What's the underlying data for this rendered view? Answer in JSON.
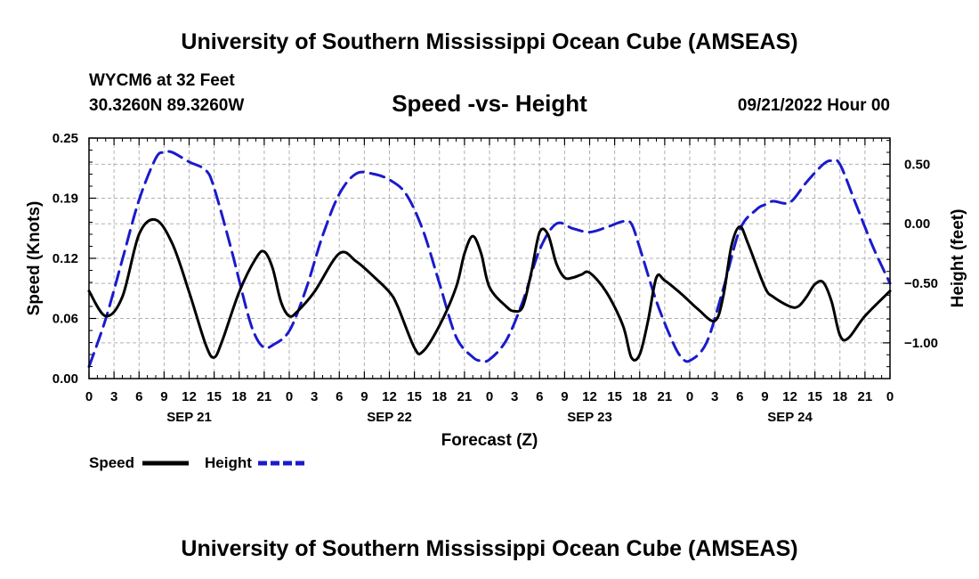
{
  "page": {
    "title": "University of Southern Mississippi Ocean Cube (AMSEAS)",
    "footer_title": "University of Southern Mississippi Ocean Cube (AMSEAS)",
    "station": "WYCM6 at 32 Feet",
    "coords": "30.3260N  89.3260W",
    "date": "09/21/2022 Hour 00"
  },
  "chart_data": {
    "type": "line",
    "title": "Speed -vs- Height",
    "xlabel": "Forecast (Z)",
    "ylabel": "Speed (Knots)",
    "y2label": "Height (feet)",
    "x_hours_range": [
      0,
      96
    ],
    "x_tick_labels": [
      "0",
      "3",
      "6",
      "9",
      "12",
      "15",
      "18",
      "21",
      "0",
      "3",
      "6",
      "9",
      "12",
      "15",
      "18",
      "21",
      "0",
      "3",
      "6",
      "9",
      "12",
      "15",
      "18",
      "21",
      "0",
      "3",
      "6",
      "9",
      "12",
      "15",
      "18",
      "21",
      "0"
    ],
    "day_labels": [
      {
        "hour": 12,
        "label": "SEP 21"
      },
      {
        "hour": 36,
        "label": "SEP 22"
      },
      {
        "hour": 60,
        "label": "SEP 23"
      },
      {
        "hour": 84,
        "label": "SEP 24"
      }
    ],
    "ylim": [
      0,
      0.25
    ],
    "y_ticks": [
      0.0,
      0.0625,
      0.125,
      0.1875,
      0.25
    ],
    "y_tick_labels": [
      "0.00",
      "0.06",
      "0.12",
      "0.19",
      "0.25"
    ],
    "y2lim": [
      -1.3,
      0.72
    ],
    "y2_ticks": [
      -1.0,
      -0.5,
      0.0,
      0.5
    ],
    "y2_tick_labels": [
      "−1.00",
      "−0.50",
      "0.00",
      "0.50"
    ],
    "legend": [
      {
        "name": "Speed",
        "color": "#000000",
        "style": "solid"
      },
      {
        "name": "Height",
        "color": "#1a1acc",
        "style": "dashed"
      }
    ],
    "series": [
      {
        "name": "Speed",
        "axis": "left",
        "color": "#000000",
        "points": [
          [
            0,
            0.091
          ],
          [
            2,
            0.065
          ],
          [
            4,
            0.085
          ],
          [
            6,
            0.15
          ],
          [
            8,
            0.165
          ],
          [
            10,
            0.14
          ],
          [
            12,
            0.09
          ],
          [
            14,
            0.035
          ],
          [
            15,
            0.022
          ],
          [
            16,
            0.04
          ],
          [
            18,
            0.09
          ],
          [
            20,
            0.125
          ],
          [
            21,
            0.132
          ],
          [
            22,
            0.115
          ],
          [
            23,
            0.08
          ],
          [
            24,
            0.065
          ],
          [
            25,
            0.07
          ],
          [
            27,
            0.09
          ],
          [
            30,
            0.13
          ],
          [
            32,
            0.122
          ],
          [
            34,
            0.107
          ],
          [
            36,
            0.09
          ],
          [
            37,
            0.075
          ],
          [
            39,
            0.032
          ],
          [
            40,
            0.028
          ],
          [
            42,
            0.055
          ],
          [
            44,
            0.095
          ],
          [
            45,
            0.13
          ],
          [
            46,
            0.148
          ],
          [
            47,
            0.13
          ],
          [
            48,
            0.095
          ],
          [
            50,
            0.075
          ],
          [
            51,
            0.07
          ],
          [
            52,
            0.075
          ],
          [
            53,
            0.11
          ],
          [
            54,
            0.152
          ],
          [
            55,
            0.15
          ],
          [
            56,
            0.12
          ],
          [
            57,
            0.105
          ],
          [
            58,
            0.105
          ],
          [
            59,
            0.108
          ],
          [
            60,
            0.11
          ],
          [
            62,
            0.09
          ],
          [
            64,
            0.055
          ],
          [
            65,
            0.022
          ],
          [
            66,
            0.025
          ],
          [
            67,
            0.06
          ],
          [
            68,
            0.105
          ],
          [
            69,
            0.102
          ],
          [
            71,
            0.088
          ],
          [
            73,
            0.072
          ],
          [
            75,
            0.06
          ],
          [
            76,
            0.085
          ],
          [
            77,
            0.138
          ],
          [
            78,
            0.158
          ],
          [
            79,
            0.14
          ],
          [
            81,
            0.095
          ],
          [
            82,
            0.085
          ],
          [
            84,
            0.075
          ],
          [
            85,
            0.075
          ],
          [
            86,
            0.085
          ],
          [
            87,
            0.098
          ],
          [
            88,
            0.1
          ],
          [
            89,
            0.08
          ],
          [
            90,
            0.045
          ],
          [
            91,
            0.042
          ],
          [
            93,
            0.065
          ],
          [
            96,
            0.091
          ]
        ]
      },
      {
        "name": "Height",
        "axis": "right",
        "color": "#1a1acc",
        "points": [
          [
            0,
            -1.2
          ],
          [
            2,
            -0.8
          ],
          [
            4,
            -0.3
          ],
          [
            6,
            0.2
          ],
          [
            8,
            0.55
          ],
          [
            9,
            0.6
          ],
          [
            10,
            0.6
          ],
          [
            12,
            0.52
          ],
          [
            14,
            0.45
          ],
          [
            15,
            0.3
          ],
          [
            17,
            -0.2
          ],
          [
            19,
            -0.75
          ],
          [
            20,
            -0.95
          ],
          [
            21,
            -1.04
          ],
          [
            22,
            -1.02
          ],
          [
            24,
            -0.9
          ],
          [
            26,
            -0.55
          ],
          [
            28,
            -0.1
          ],
          [
            30,
            0.25
          ],
          [
            32,
            0.42
          ],
          [
            34,
            0.42
          ],
          [
            36,
            0.37
          ],
          [
            38,
            0.25
          ],
          [
            40,
            -0.05
          ],
          [
            42,
            -0.5
          ],
          [
            44,
            -0.95
          ],
          [
            46,
            -1.12
          ],
          [
            47,
            -1.15
          ],
          [
            48,
            -1.14
          ],
          [
            50,
            -0.98
          ],
          [
            52,
            -0.65
          ],
          [
            54,
            -0.22
          ],
          [
            56,
            0.0
          ],
          [
            58,
            -0.04
          ],
          [
            60,
            -0.07
          ],
          [
            62,
            -0.03
          ],
          [
            64,
            0.02
          ],
          [
            65,
            0.0
          ],
          [
            66,
            -0.2
          ],
          [
            68,
            -0.65
          ],
          [
            70,
            -1.0
          ],
          [
            71,
            -1.12
          ],
          [
            72,
            -1.15
          ],
          [
            74,
            -1.0
          ],
          [
            76,
            -0.55
          ],
          [
            78,
            -0.05
          ],
          [
            80,
            0.12
          ],
          [
            81,
            0.16
          ],
          [
            82,
            0.19
          ],
          [
            84,
            0.18
          ],
          [
            86,
            0.35
          ],
          [
            88,
            0.5
          ],
          [
            89,
            0.53
          ],
          [
            90,
            0.5
          ],
          [
            92,
            0.15
          ],
          [
            94,
            -0.2
          ],
          [
            96,
            -0.5
          ]
        ]
      }
    ]
  }
}
